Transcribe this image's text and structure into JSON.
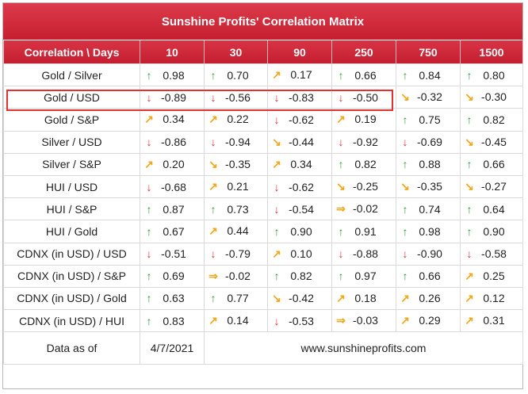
{
  "title": "Sunshine Profits' Correlation Matrix",
  "headers": [
    "Correlation \\ Days",
    "10",
    "30",
    "90",
    "250",
    "750",
    "1500"
  ],
  "rows": [
    {
      "label": "Gold / Silver",
      "cells": [
        {
          "a": "up",
          "v": "0.98"
        },
        {
          "a": "up",
          "v": "0.70"
        },
        {
          "a": "ur",
          "v": "0.17"
        },
        {
          "a": "up",
          "v": "0.66"
        },
        {
          "a": "up",
          "v": "0.84"
        },
        {
          "a": "up",
          "v": "0.80"
        }
      ]
    },
    {
      "label": "Gold / USD",
      "cells": [
        {
          "a": "down",
          "v": "-0.89"
        },
        {
          "a": "down",
          "v": "-0.56"
        },
        {
          "a": "down",
          "v": "-0.83"
        },
        {
          "a": "down",
          "v": "-0.50"
        },
        {
          "a": "dr",
          "v": "-0.32"
        },
        {
          "a": "dr",
          "v": "-0.30"
        }
      ]
    },
    {
      "label": "Gold / S&P",
      "cells": [
        {
          "a": "ur",
          "v": "0.34"
        },
        {
          "a": "ur",
          "v": "0.22"
        },
        {
          "a": "down",
          "v": "-0.62"
        },
        {
          "a": "ur",
          "v": "0.19"
        },
        {
          "a": "up",
          "v": "0.75"
        },
        {
          "a": "up",
          "v": "0.82"
        }
      ]
    },
    {
      "label": "Silver / USD",
      "cells": [
        {
          "a": "down",
          "v": "-0.86"
        },
        {
          "a": "down",
          "v": "-0.94"
        },
        {
          "a": "dr",
          "v": "-0.44"
        },
        {
          "a": "down",
          "v": "-0.92"
        },
        {
          "a": "down",
          "v": "-0.69"
        },
        {
          "a": "dr",
          "v": "-0.45"
        }
      ]
    },
    {
      "label": "Silver / S&P",
      "cells": [
        {
          "a": "ur",
          "v": "0.20"
        },
        {
          "a": "dr",
          "v": "-0.35"
        },
        {
          "a": "ur",
          "v": "0.34"
        },
        {
          "a": "up",
          "v": "0.82"
        },
        {
          "a": "up",
          "v": "0.88"
        },
        {
          "a": "up",
          "v": "0.66"
        }
      ]
    },
    {
      "label": "HUI / USD",
      "cells": [
        {
          "a": "down",
          "v": "-0.68"
        },
        {
          "a": "ur",
          "v": "0.21"
        },
        {
          "a": "down",
          "v": "-0.62"
        },
        {
          "a": "dr",
          "v": "-0.25"
        },
        {
          "a": "dr",
          "v": "-0.35"
        },
        {
          "a": "dr",
          "v": "-0.27"
        }
      ]
    },
    {
      "label": "HUI / S&P",
      "cells": [
        {
          "a": "up",
          "v": "0.87"
        },
        {
          "a": "up",
          "v": "0.73"
        },
        {
          "a": "down",
          "v": "-0.54"
        },
        {
          "a": "rt",
          "v": "-0.02"
        },
        {
          "a": "up",
          "v": "0.74"
        },
        {
          "a": "up",
          "v": "0.64"
        }
      ]
    },
    {
      "label": "HUI / Gold",
      "cells": [
        {
          "a": "up",
          "v": "0.67"
        },
        {
          "a": "ur",
          "v": "0.44"
        },
        {
          "a": "up",
          "v": "0.90"
        },
        {
          "a": "up",
          "v": "0.91"
        },
        {
          "a": "up",
          "v": "0.98"
        },
        {
          "a": "up",
          "v": "0.90"
        }
      ]
    },
    {
      "label": "CDNX (in USD) / USD",
      "cells": [
        {
          "a": "down",
          "v": "-0.51"
        },
        {
          "a": "down",
          "v": "-0.79"
        },
        {
          "a": "ur",
          "v": "0.10"
        },
        {
          "a": "down",
          "v": "-0.88"
        },
        {
          "a": "down",
          "v": "-0.90"
        },
        {
          "a": "down",
          "v": "-0.58"
        }
      ]
    },
    {
      "label": "CDNX (in USD) / S&P",
      "cells": [
        {
          "a": "up",
          "v": "0.69"
        },
        {
          "a": "rt",
          "v": "-0.02"
        },
        {
          "a": "up",
          "v": "0.82"
        },
        {
          "a": "up",
          "v": "0.97"
        },
        {
          "a": "up",
          "v": "0.66"
        },
        {
          "a": "ur",
          "v": "0.25"
        }
      ]
    },
    {
      "label": "CDNX (in USD) / Gold",
      "cells": [
        {
          "a": "up",
          "v": "0.63"
        },
        {
          "a": "up",
          "v": "0.77"
        },
        {
          "a": "dr",
          "v": "-0.42"
        },
        {
          "a": "ur",
          "v": "0.18"
        },
        {
          "a": "ur",
          "v": "0.26"
        },
        {
          "a": "ur",
          "v": "0.12"
        }
      ]
    },
    {
      "label": "CDNX (in USD) / HUI",
      "cells": [
        {
          "a": "up",
          "v": "0.83"
        },
        {
          "a": "ur",
          "v": "0.14"
        },
        {
          "a": "down",
          "v": "-0.53"
        },
        {
          "a": "rt",
          "v": "-0.03"
        },
        {
          "a": "ur",
          "v": "0.29"
        },
        {
          "a": "ur",
          "v": "0.31"
        }
      ]
    }
  ],
  "footer": {
    "label": "Data as of",
    "date": "4/7/2021",
    "site": "www.sunshineprofits.com"
  },
  "highlighted_row": "Gold / USD",
  "colors": {
    "header": "#c9283a",
    "up": "#2e9d3a",
    "down": "#e0323a",
    "sideways": "#f0a81c",
    "highlight": "#e53030"
  }
}
